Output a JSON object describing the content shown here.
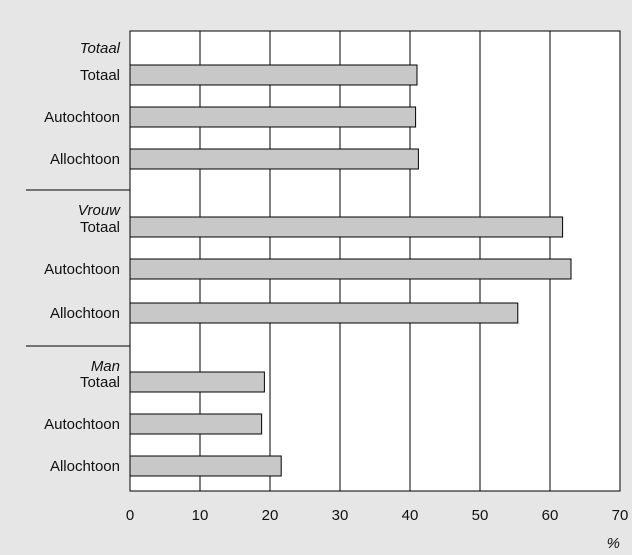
{
  "chart_data": {
    "type": "bar",
    "orientation": "horizontal",
    "unit": "%",
    "xlim": [
      0,
      70
    ],
    "ticks": [
      "0",
      "10",
      "20",
      "30",
      "40",
      "50",
      "60",
      "70"
    ],
    "grid": "vertical",
    "bar_color": "#c8c8c8",
    "background_color": "#e6e6e6",
    "plot_color": "#ffffff",
    "groups": [
      {
        "name": "Totaal",
        "bars": [
          {
            "label": "Totaal",
            "value": 41.0
          },
          {
            "label": "Autochtoon",
            "value": 40.8
          },
          {
            "label": "Allochtoon",
            "value": 41.2
          }
        ]
      },
      {
        "name": "Vrouw",
        "bars": [
          {
            "label": "Totaal",
            "value": 61.8
          },
          {
            "label": "Autochtoon",
            "value": 63.0
          },
          {
            "label": "Allochtoon",
            "value": 55.4
          }
        ]
      },
      {
        "name": "Man",
        "bars": [
          {
            "label": "Totaal",
            "value": 19.2
          },
          {
            "label": "Autochtoon",
            "value": 18.8
          },
          {
            "label": "Allochtoon",
            "value": 21.6
          }
        ]
      }
    ]
  }
}
